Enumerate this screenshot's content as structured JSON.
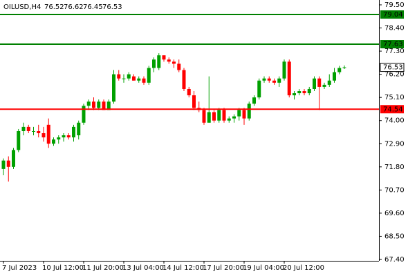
{
  "chart_data": {
    "type": "candlestick",
    "title": "OILUSD,H4",
    "categories": [
      "7 Jul 2023",
      null,
      null,
      null,
      null,
      null,
      null,
      null,
      "10 Jul 12:00",
      null,
      null,
      null,
      null,
      null,
      null,
      null,
      "11 Jul 20:00",
      null,
      null,
      null,
      null,
      null,
      null,
      null,
      "13 Jul 04:00",
      null,
      null,
      null,
      null,
      null,
      null,
      null,
      "14 Jul 12:00",
      null,
      null,
      null,
      null,
      null,
      null,
      null,
      "17 Jul 20:00",
      null,
      null,
      null,
      null,
      null,
      null,
      null,
      "19 Jul 04:00",
      null,
      null,
      null,
      null,
      null,
      null,
      null,
      "20 Jul 12:00",
      null,
      null,
      null,
      null,
      null,
      null,
      null,
      null,
      null,
      null,
      null,
      null
    ],
    "open": [
      71.7,
      72.1,
      71.8,
      72.6,
      73.5,
      73.7,
      73.5,
      73.5,
      73.4,
      73.8,
      72.9,
      73.1,
      73.2,
      73.3,
      73.2,
      73.3,
      73.9,
      74.7,
      74.9,
      74.6,
      74.9,
      74.5,
      74.9,
      76.2,
      76.0,
      76.0,
      76.1,
      75.9,
      76.0,
      75.8,
      76.5,
      76.5,
      77.1,
      76.9,
      76.8,
      76.7,
      76.4,
      75.5,
      75.2,
      74.6,
      74.5,
      73.9,
      74.4,
      74.0,
      74.5,
      74.0,
      74.1,
      74.2,
      74.5,
      74.1,
      74.8,
      75.1,
      75.9,
      76.0,
      75.9,
      75.8,
      76.0,
      76.8,
      75.2,
      75.3,
      75.4,
      75.3,
      75.5,
      76.0,
      75.6,
      75.7,
      75.9,
      76.3,
      76.52
    ],
    "high": [
      72.2,
      72.3,
      72.7,
      73.6,
      73.9,
      73.8,
      73.7,
      73.8,
      73.7,
      74.1,
      73.2,
      73.3,
      73.4,
      73.4,
      73.8,
      74.0,
      74.8,
      75.0,
      75.1,
      75.0,
      75.0,
      75.0,
      76.4,
      76.4,
      76.2,
      76.3,
      76.2,
      76.1,
      76.1,
      76.6,
      77.0,
      77.2,
      77.1,
      77.0,
      76.9,
      76.9,
      76.5,
      75.6,
      75.4,
      74.9,
      74.6,
      76.1,
      74.5,
      74.6,
      74.6,
      74.2,
      74.3,
      74.6,
      74.6,
      74.9,
      75.2,
      76.0,
      76.1,
      76.1,
      76.0,
      76.1,
      76.9,
      76.9,
      75.4,
      75.5,
      75.5,
      75.6,
      76.1,
      76.1,
      75.8,
      76.2,
      76.5,
      76.6,
      76.62
    ],
    "low": [
      71.4,
      71.1,
      71.7,
      72.5,
      73.3,
      73.4,
      73.3,
      73.2,
      73.0,
      72.7,
      72.8,
      72.9,
      73.0,
      73.1,
      73.0,
      73.1,
      73.8,
      74.5,
      74.5,
      74.5,
      74.5,
      74.5,
      74.8,
      75.9,
      75.8,
      75.9,
      75.9,
      75.8,
      75.7,
      75.7,
      76.3,
      76.4,
      76.8,
      76.7,
      76.5,
      76.3,
      75.4,
      75.1,
      74.5,
      74.4,
      73.8,
      73.9,
      73.9,
      73.9,
      73.9,
      73.9,
      73.9,
      74.0,
      73.8,
      74.0,
      74.7,
      75.0,
      75.8,
      75.8,
      75.7,
      75.6,
      75.9,
      75.1,
      75.0,
      75.2,
      75.2,
      75.2,
      75.4,
      74.5,
      75.5,
      75.6,
      75.8,
      76.2,
      76.45
    ],
    "close": [
      72.1,
      71.8,
      72.6,
      73.5,
      73.7,
      73.5,
      73.5,
      73.4,
      73.2,
      72.9,
      73.1,
      73.2,
      73.3,
      73.2,
      73.7,
      73.9,
      74.7,
      74.9,
      74.6,
      74.9,
      74.5,
      74.9,
      76.2,
      76.0,
      76.0,
      76.2,
      75.9,
      76.0,
      75.8,
      76.5,
      76.9,
      77.1,
      76.9,
      76.8,
      76.7,
      76.4,
      75.5,
      75.2,
      74.6,
      74.5,
      73.9,
      74.4,
      74.0,
      74.5,
      74.0,
      74.1,
      74.2,
      74.5,
      74.1,
      74.8,
      75.1,
      75.9,
      76.0,
      75.9,
      75.8,
      76.0,
      76.8,
      75.2,
      75.3,
      75.4,
      75.3,
      75.5,
      76.0,
      75.6,
      75.7,
      75.9,
      76.3,
      76.5,
      76.53
    ],
    "up_color": "#00a000",
    "down_color": "#ff0000",
    "levels": [
      79.04,
      77.63,
      74.54
    ],
    "level_colors": [
      "#008000",
      "#008000",
      "#ff0000"
    ],
    "last_price": 76.53,
    "ylim": [
      67.4,
      79.5
    ],
    "yticks": [
      {
        "value": 79.5,
        "label": "79.50"
      },
      {
        "value": 78.4,
        "label": "78.40"
      },
      {
        "value": 77.3,
        "label": "77.30"
      },
      {
        "value": 76.2,
        "label": "76.20"
      },
      {
        "value": 75.1,
        "label": "75.10"
      },
      {
        "value": 74,
        "label": "74.00"
      },
      {
        "value": 72.9,
        "label": "72.90"
      },
      {
        "value": 71.8,
        "label": "71.80"
      },
      {
        "value": 70.7,
        "label": "70.70"
      },
      {
        "value": 69.6,
        "label": "69.60"
      },
      {
        "value": 68.5,
        "label": "68.50"
      },
      {
        "value": 67.4,
        "label": "67.40"
      }
    ]
  }
}
